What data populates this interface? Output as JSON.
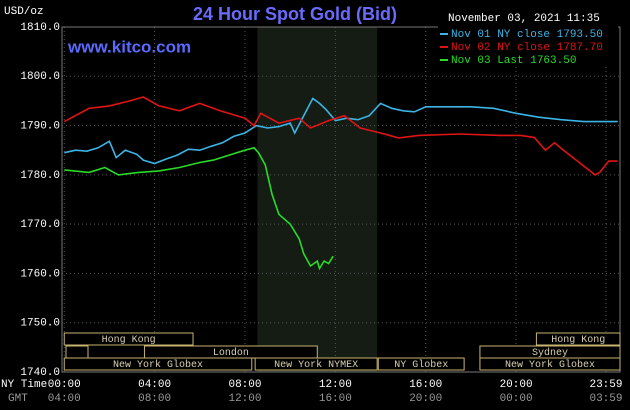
{
  "chart_data": {
    "type": "line",
    "title": "24 Hour Spot Gold (Bid)",
    "unit_label": "USD/oz",
    "timestamp": "November 03, 2021 11:35",
    "watermark": "www.kitco.com",
    "x_label": "NY Time",
    "x2_label": "GMT",
    "xlim": [
      -0.1,
      24.6
    ],
    "xticks": [
      {
        "value": 0,
        "label": "00:00"
      },
      {
        "value": 4,
        "label": "04:00"
      },
      {
        "value": 8,
        "label": "08:00"
      },
      {
        "value": 12,
        "label": "12:00"
      },
      {
        "value": 16,
        "label": "16:00"
      },
      {
        "value": 20,
        "label": "20:00"
      },
      {
        "value": 23.98,
        "label": "23:59"
      }
    ],
    "x2ticks": [
      {
        "value": 0,
        "label": "04:00"
      },
      {
        "value": 4,
        "label": "08:00"
      },
      {
        "value": 8,
        "label": "12:00"
      },
      {
        "value": 12,
        "label": "16:00"
      },
      {
        "value": 16,
        "label": "20:00"
      },
      {
        "value": 20,
        "label": "00:00"
      },
      {
        "value": 23.98,
        "label": "03:59"
      }
    ],
    "ylim": [
      1740,
      1810
    ],
    "yticks": [
      {
        "value": 1740,
        "label": "1740.0"
      },
      {
        "value": 1750,
        "label": "1750.0"
      },
      {
        "value": 1760,
        "label": "1760.0"
      },
      {
        "value": 1770,
        "label": "1770.0"
      },
      {
        "value": 1780,
        "label": "1780.0"
      },
      {
        "value": 1790,
        "label": "1790.0"
      },
      {
        "value": 1800,
        "label": "1800.0"
      },
      {
        "value": 1810,
        "label": "1810.0"
      }
    ],
    "grid": true,
    "shaded_range": [
      8.55,
      13.85
    ],
    "series": [
      {
        "name": "Nov 01 NY close 1793.50",
        "color": "#3cb4e6",
        "x": [
          0,
          0.5,
          1,
          1.5,
          2,
          2.3,
          2.7,
          3.2,
          3.5,
          4,
          4.5,
          5,
          5.5,
          6,
          6.5,
          7,
          7.5,
          8,
          8.5,
          9,
          9.5,
          10,
          10.2,
          10.6,
          11,
          11.3,
          11.6,
          12,
          12.5,
          13,
          13.5,
          14,
          14.5,
          15,
          15.5,
          16,
          17,
          18,
          19,
          20,
          21,
          22,
          23,
          24,
          24.5
        ],
        "values": [
          1784.5,
          1785,
          1784.8,
          1785.5,
          1786.8,
          1783.5,
          1785,
          1784.2,
          1783,
          1782.3,
          1783.2,
          1784,
          1785.2,
          1785,
          1785.8,
          1786.5,
          1787.8,
          1788.5,
          1790,
          1789.5,
          1789.8,
          1790.5,
          1788.5,
          1792,
          1795.5,
          1794.5,
          1793.2,
          1791,
          1791.5,
          1791.2,
          1792,
          1794.5,
          1793.5,
          1793,
          1792.8,
          1793.8,
          1793.8,
          1793.8,
          1793.5,
          1792.5,
          1791.7,
          1791.2,
          1790.8,
          1790.8,
          1790.8
        ]
      },
      {
        "name": "Nov 02 NY close 1787.70",
        "color": "#e01414",
        "x": [
          0,
          1.1,
          2,
          2.9,
          3.5,
          4.2,
          5.1,
          6,
          6.9,
          8,
          8.4,
          8.7,
          9.1,
          9.5,
          10.4,
          10.9,
          11.7,
          12.4,
          13.1,
          14,
          14.8,
          15.7,
          17.5,
          19.3,
          20.2,
          20.8,
          21.3,
          21.7,
          22.1,
          22.8,
          23.5,
          23.7,
          24.1,
          24.5
        ],
        "values": [
          1790.8,
          1793.5,
          1794,
          1795,
          1795.8,
          1794,
          1793,
          1794.5,
          1793,
          1791.5,
          1790,
          1792.5,
          1791.5,
          1790.5,
          1791.5,
          1789.5,
          1791,
          1792,
          1789.5,
          1788.5,
          1787.5,
          1788,
          1788.3,
          1788,
          1788,
          1787.6,
          1785,
          1786.5,
          1785,
          1782.5,
          1780,
          1780.5,
          1782.8,
          1782.8
        ]
      },
      {
        "name": "Nov 03 Last 1763.50",
        "color": "#28dc28",
        "x": [
          0,
          1.1,
          1.8,
          2.4,
          3.3,
          4.2,
          5.1,
          6,
          6.6,
          7.3,
          8,
          8.4,
          8.6,
          8.9,
          9.2,
          9.5,
          10,
          10.4,
          10.6,
          10.9,
          11.2,
          11.3,
          11.5,
          11.7,
          11.9
        ],
        "values": [
          1781,
          1780.5,
          1781.5,
          1780,
          1780.5,
          1780.8,
          1781.5,
          1782.5,
          1783,
          1784,
          1785,
          1785.5,
          1784.5,
          1782,
          1776,
          1772,
          1770,
          1767,
          1764,
          1761.5,
          1762.5,
          1761,
          1762.5,
          1762,
          1763.5
        ]
      }
    ],
    "sessions": [
      {
        "name": "Hong Kong",
        "start": 0,
        "end": 5.7
      },
      {
        "name": "Hong Kong",
        "start": 20.9,
        "end": 24.6
      },
      {
        "name": "London",
        "start": 3.55,
        "end": 11.2
      },
      {
        "name": "Sydney",
        "start": 18.4,
        "end": 24.6
      },
      {
        "name": "New York Globex",
        "start": 0,
        "end": 8.3
      },
      {
        "name": "New York NYMEX",
        "start": 8.45,
        "end": 13.85
      },
      {
        "name": "NY Globex",
        "start": 13.9,
        "end": 17.7
      },
      {
        "name": "New York Globex",
        "start": 18.4,
        "end": 24.6
      }
    ]
  }
}
